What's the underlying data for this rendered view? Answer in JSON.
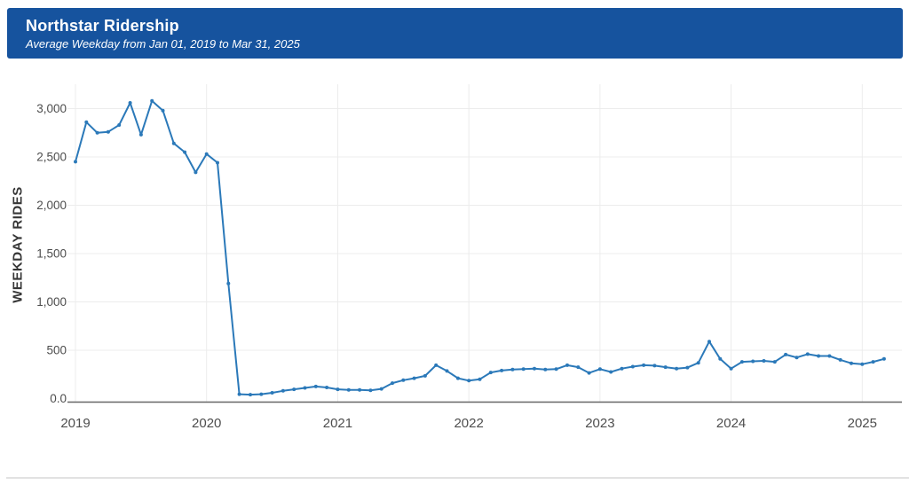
{
  "header": {
    "title": "Northstar Ridership",
    "subtitle": "Average Weekday from Jan 01, 2019 to Mar 31, 2025"
  },
  "colors": {
    "header_bg": "#16539e",
    "line": "#2b79b9",
    "grid": "#ececec",
    "axis": "#666666",
    "tick_text": "#4d4d4d",
    "axis_title_text": "#363636",
    "divider": "#e2e2e2"
  },
  "chart_data": {
    "type": "line",
    "title": "Northstar Ridership",
    "subtitle": "Average Weekday from Jan 01, 2019 to Mar 31, 2025",
    "xlabel": "",
    "ylabel": "WEEKDAY RIDES",
    "ylim": [
      0,
      3200
    ],
    "grid": true,
    "legend": "none",
    "y_ticks": {
      "labels": [
        "0.0",
        "500",
        "1,000",
        "1,500",
        "2,000",
        "2,500",
        "3,000"
      ],
      "values": [
        0,
        500,
        1000,
        1500,
        2000,
        2500,
        3000
      ]
    },
    "x_ticks": {
      "labels": [
        "2019",
        "2020",
        "2021",
        "2022",
        "2023",
        "2024",
        "2025"
      ],
      "month_index": [
        0,
        12,
        24,
        36,
        48,
        60,
        72
      ]
    },
    "series": [
      {
        "name": "Average Weekday Rides",
        "x": [
          "Jan 2019",
          "Feb 2019",
          "Mar 2019",
          "Apr 2019",
          "May 2019",
          "Jun 2019",
          "Jul 2019",
          "Aug 2019",
          "Sep 2019",
          "Oct 2019",
          "Nov 2019",
          "Dec 2019",
          "Jan 2020",
          "Feb 2020",
          "Mar 2020",
          "Apr 2020",
          "May 2020",
          "Jun 2020",
          "Jul 2020",
          "Aug 2020",
          "Sep 2020",
          "Oct 2020",
          "Nov 2020",
          "Dec 2020",
          "Jan 2021",
          "Feb 2021",
          "Mar 2021",
          "Apr 2021",
          "May 2021",
          "Jun 2021",
          "Jul 2021",
          "Aug 2021",
          "Sep 2021",
          "Oct 2021",
          "Nov 2021",
          "Dec 2021",
          "Jan 2022",
          "Feb 2022",
          "Mar 2022",
          "Apr 2022",
          "May 2022",
          "Jun 2022",
          "Jul 2022",
          "Aug 2022",
          "Sep 2022",
          "Oct 2022",
          "Nov 2022",
          "Dec 2022",
          "Jan 2023",
          "Feb 2023",
          "Mar 2023",
          "Apr 2023",
          "May 2023",
          "Jun 2023",
          "Jul 2023",
          "Aug 2023",
          "Sep 2023",
          "Oct 2023",
          "Nov 2023",
          "Dec 2023",
          "Jan 2024",
          "Feb 2024",
          "Mar 2024",
          "Apr 2024",
          "May 2024",
          "Jun 2024",
          "Jul 2024",
          "Aug 2024",
          "Sep 2024",
          "Oct 2024",
          "Nov 2024",
          "Dec 2024",
          "Jan 2025",
          "Feb 2025",
          "Mar 2025"
        ],
        "values": [
          2450,
          2860,
          2750,
          2760,
          2830,
          3060,
          2730,
          3080,
          2980,
          2640,
          2550,
          2340,
          2530,
          2440,
          1190,
          45,
          40,
          45,
          60,
          80,
          95,
          110,
          125,
          115,
          95,
          90,
          90,
          85,
          100,
          160,
          190,
          210,
          235,
          345,
          285,
          210,
          185,
          200,
          270,
          290,
          300,
          305,
          310,
          300,
          305,
          345,
          325,
          265,
          305,
          275,
          310,
          330,
          345,
          340,
          325,
          310,
          320,
          370,
          590,
          410,
          310,
          380,
          385,
          390,
          380,
          455,
          425,
          460,
          440,
          440,
          400,
          365,
          355,
          380,
          410
        ]
      }
    ]
  }
}
